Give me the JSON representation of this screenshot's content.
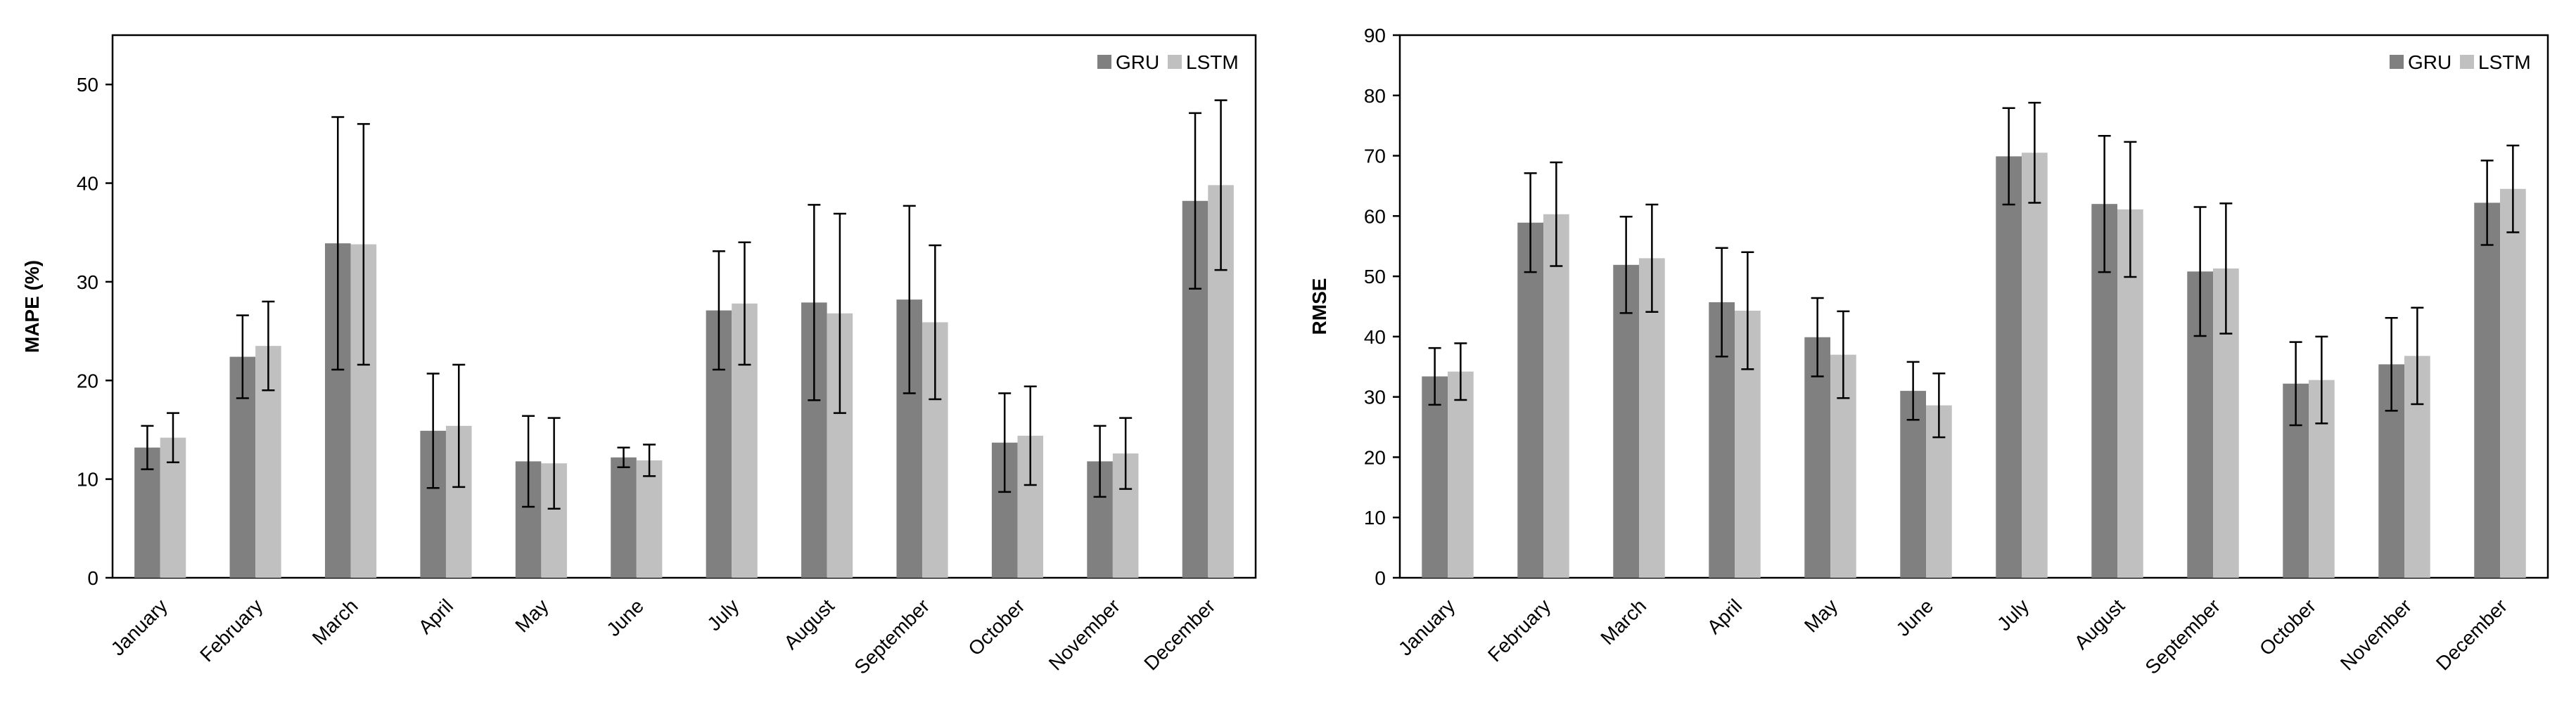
{
  "chart_data": [
    {
      "type": "bar",
      "title": "",
      "xlabel": "",
      "ylabel": "MAPE (%)",
      "ylim": [
        0,
        55
      ],
      "yticks": [
        0,
        10,
        20,
        30,
        40,
        50
      ],
      "legend_position": "top-right",
      "categories": [
        "January",
        "February",
        "March",
        "April",
        "May",
        "June",
        "July",
        "August",
        "September",
        "October",
        "November",
        "December"
      ],
      "series": [
        {
          "name": "GRU",
          "color": "#808080",
          "values": [
            13.2,
            22.4,
            33.9,
            14.9,
            11.8,
            12.2,
            27.1,
            27.9,
            28.2,
            13.7,
            11.8,
            38.2
          ],
          "errors": [
            2.2,
            4.2,
            12.8,
            5.8,
            4.6,
            1.0,
            6.0,
            9.9,
            9.5,
            5.0,
            3.6,
            8.9
          ]
        },
        {
          "name": "LSTM",
          "color": "#c0c0c0",
          "values": [
            14.2,
            23.5,
            33.8,
            15.4,
            11.6,
            11.9,
            27.8,
            26.8,
            25.9,
            14.4,
            12.6,
            39.8
          ],
          "errors": [
            2.5,
            4.5,
            12.2,
            6.2,
            4.6,
            1.6,
            6.2,
            10.1,
            7.8,
            5.0,
            3.6,
            8.6
          ]
        }
      ]
    },
    {
      "type": "bar",
      "title": "",
      "xlabel": "",
      "ylabel": "RMSE",
      "ylim": [
        0,
        90
      ],
      "yticks": [
        0,
        10,
        20,
        30,
        40,
        50,
        60,
        70,
        80,
        90
      ],
      "legend_position": "top-right",
      "categories": [
        "January",
        "February",
        "March",
        "April",
        "May",
        "June",
        "July",
        "August",
        "September",
        "October",
        "November",
        "December"
      ],
      "series": [
        {
          "name": "GRU",
          "color": "#808080",
          "values": [
            33.4,
            58.9,
            51.9,
            45.7,
            39.9,
            31.0,
            69.9,
            62.0,
            50.8,
            32.2,
            35.4,
            62.2
          ],
          "errors": [
            4.7,
            8.2,
            8.0,
            9.0,
            6.5,
            4.8,
            8.0,
            11.3,
            10.7,
            6.9,
            7.7,
            7.0
          ]
        },
        {
          "name": "LSTM",
          "color": "#c0c0c0",
          "values": [
            34.2,
            60.3,
            53.0,
            44.3,
            37.0,
            28.6,
            70.5,
            61.1,
            51.3,
            32.8,
            36.8,
            64.5
          ],
          "errors": [
            4.7,
            8.6,
            8.9,
            9.7,
            7.2,
            5.3,
            8.3,
            11.2,
            10.8,
            7.2,
            8.0,
            7.2
          ]
        }
      ]
    }
  ]
}
